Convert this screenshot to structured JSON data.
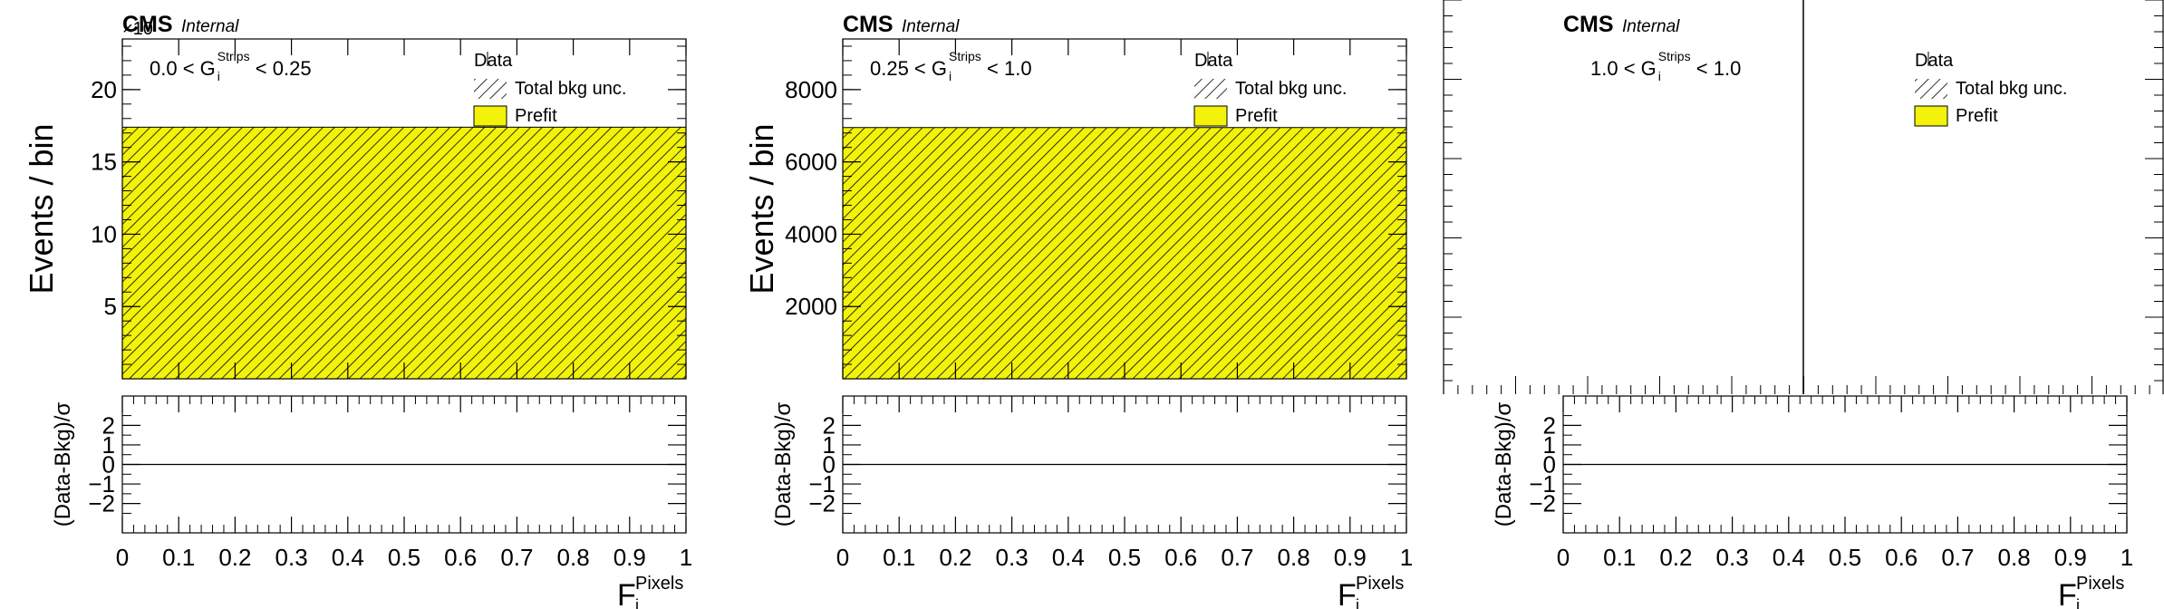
{
  "colors": {
    "prefit_fill": "#f2f20a",
    "axis": "#000000",
    "hatch": "#000000",
    "background": "#ffffff"
  },
  "chart_data": [
    {
      "type": "bar",
      "panel": "left",
      "cms_label": "CMS",
      "cms_sublabel": "Internal",
      "exponent": "×10",
      "region_label": {
        "prefix": "0.0 < G",
        "sup": "Strips",
        "sub": "i",
        "suffix": "< 0.25"
      },
      "legend": {
        "placement": "top-right",
        "entries": [
          "Data",
          "Total bkg unc.",
          "Prefit"
        ]
      },
      "ylabel": "Events / bin",
      "ylim": [
        0,
        23.5
      ],
      "yticks": [
        5,
        10,
        15,
        20
      ],
      "ytick_labels": [
        "5",
        "10",
        "15",
        "20"
      ],
      "xlabel": {
        "base": "F",
        "sup": "Pixels",
        "sub": "i"
      },
      "xlim": [
        0,
        1
      ],
      "xticks": [
        0,
        0.1,
        0.2,
        0.3,
        0.4,
        0.5,
        0.6,
        0.7,
        0.8,
        0.9,
        1
      ],
      "xtick_labels": [
        "0",
        "0.1",
        "0.2",
        "0.3",
        "0.4",
        "0.5",
        "0.6",
        "0.7",
        "0.8",
        "0.9",
        "1"
      ],
      "bins": [
        [
          0,
          1
        ]
      ],
      "values": [
        17.4
      ],
      "ratio": {
        "ylabel": "(Data-Bkg)/σ",
        "ylim": [
          -3.5,
          3.5
        ],
        "yticks": [
          -2,
          -1,
          0,
          1,
          2
        ],
        "ytick_labels": [
          "−2",
          "−1",
          "0",
          "1",
          "2"
        ],
        "values": [
          0
        ]
      }
    },
    {
      "type": "bar",
      "panel": "middle",
      "cms_label": "CMS",
      "cms_sublabel": "Internal",
      "exponent": "",
      "region_label": {
        "prefix": "0.25 < G",
        "sup": "Strips",
        "sub": "i",
        "suffix": "< 1.0"
      },
      "legend": {
        "placement": "top-right",
        "entries": [
          "Data",
          "Total bkg unc.",
          "Prefit"
        ]
      },
      "ylabel": "Events / bin",
      "ylim": [
        0,
        9400
      ],
      "yticks": [
        2000,
        4000,
        6000,
        8000
      ],
      "ytick_labels": [
        "2000",
        "4000",
        "6000",
        "8000"
      ],
      "xlabel": {
        "base": "F",
        "sup": "Pixels",
        "sub": "i"
      },
      "xlim": [
        0,
        1
      ],
      "xticks": [
        0,
        0.1,
        0.2,
        0.3,
        0.4,
        0.5,
        0.6,
        0.7,
        0.8,
        0.9,
        1
      ],
      "xtick_labels": [
        "0",
        "0.1",
        "0.2",
        "0.3",
        "0.4",
        "0.5",
        "0.6",
        "0.7",
        "0.8",
        "0.9",
        "1"
      ],
      "bins": [
        [
          0,
          1
        ]
      ],
      "values": [
        6950
      ],
      "ratio": {
        "ylabel": "(Data-Bkg)/σ",
        "ylim": [
          -3.5,
          3.5
        ],
        "yticks": [
          -2,
          -1,
          0,
          1,
          2
        ],
        "ytick_labels": [
          "−2",
          "−1",
          "0",
          "1",
          "2"
        ],
        "values": [
          0
        ]
      }
    },
    {
      "type": "bar",
      "panel": "right",
      "cms_label": "CMS",
      "cms_sublabel": "Internal",
      "exponent": "",
      "region_label": {
        "prefix": "1.0 < G",
        "sup": "Strips",
        "sub": "i",
        "suffix": "< 1.0"
      },
      "legend": {
        "placement": "top-right",
        "entries": [
          "Data",
          "Total bkg unc.",
          "Prefit"
        ]
      },
      "ylabel": "",
      "xlabel": {
        "base": "F",
        "sup": "Pixels",
        "sub": "i"
      },
      "xlim": [
        0,
        1
      ],
      "xticks": [
        0,
        0.1,
        0.2,
        0.3,
        0.4,
        0.5,
        0.6,
        0.7,
        0.8,
        0.9,
        1
      ],
      "xtick_labels": [
        "0",
        "0.1",
        "0.2",
        "0.3",
        "0.4",
        "0.5",
        "0.6",
        "0.7",
        "0.8",
        "0.9",
        "1"
      ],
      "bins": [],
      "values": [],
      "ratio": {
        "ylabel": "(Data-Bkg)/σ",
        "ylim": [
          -3.5,
          3.5
        ],
        "yticks": [
          -2,
          -1,
          0,
          1,
          2
        ],
        "ytick_labels": [
          "−2",
          "−1",
          "0",
          "1",
          "2"
        ],
        "values": [
          0
        ]
      }
    }
  ]
}
